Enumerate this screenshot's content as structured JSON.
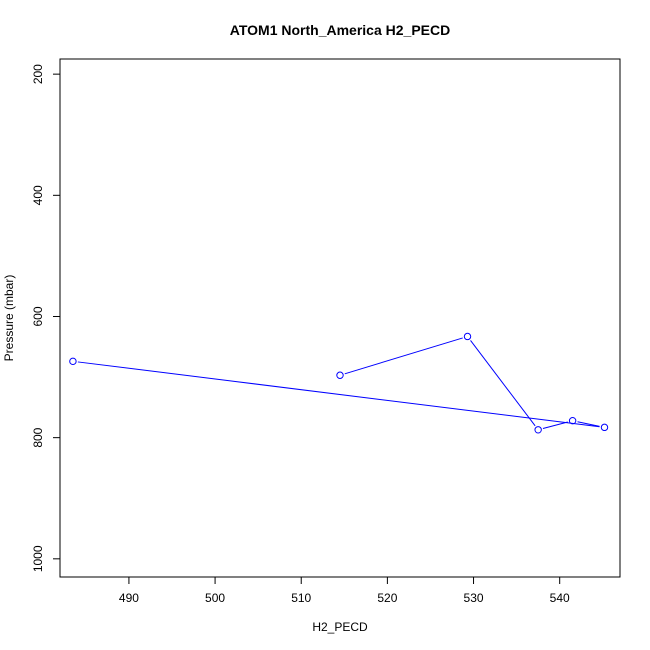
{
  "chart_data": {
    "type": "line",
    "title": "ATOM1 North_America H2_PECD",
    "xlabel": "H2_PECD",
    "ylabel": "Pressure (mbar)",
    "xlim": [
      482,
      547
    ],
    "ylim": [
      1030,
      175
    ],
    "y_reversed": true,
    "x_ticks": [
      490,
      500,
      510,
      520,
      530,
      540
    ],
    "y_ticks": [
      200,
      400,
      600,
      800,
      1000
    ],
    "grid": false,
    "series": [
      {
        "markers": "open-circle",
        "x": [
          514.5,
          529.3,
          537.5,
          541.5,
          545.2,
          483.5
        ],
        "y": [
          697,
          633,
          787,
          772,
          783,
          674
        ],
        "color": "#0000ff"
      }
    ]
  }
}
